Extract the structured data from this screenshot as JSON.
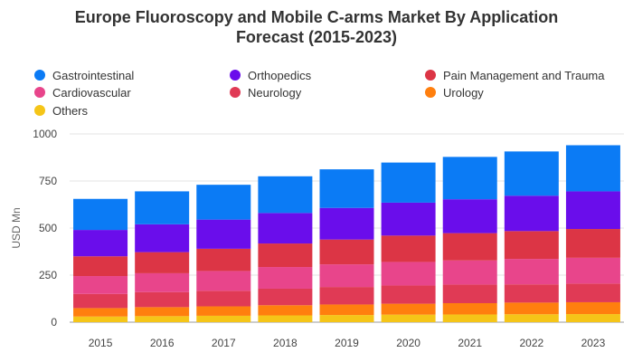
{
  "chart_data": {
    "type": "bar",
    "stacked": true,
    "title_lines": [
      "Europe Fluoroscopy and Mobile C-arms Market By Application",
      "Forecast (2015-2023)"
    ],
    "xlabel": "",
    "ylabel": "USD Mn",
    "ylim": [
      0,
      1000
    ],
    "yticks": [
      0,
      250,
      500,
      750,
      1000
    ],
    "grid": true,
    "legend_position": "top",
    "categories": [
      "2015",
      "2016",
      "2017",
      "2018",
      "2019",
      "2020",
      "2021",
      "2022",
      "2023"
    ],
    "series": [
      {
        "name": "Others",
        "color": "#F5C518",
        "values": [
          30,
          32,
          34,
          36,
          38,
          40,
          41,
          42,
          43
        ]
      },
      {
        "name": "Urology",
        "color": "#FF7F0E",
        "values": [
          45,
          48,
          50,
          54,
          56,
          58,
          60,
          62,
          63
        ]
      },
      {
        "name": "Neurology",
        "color": "#E03A55",
        "values": [
          75,
          80,
          83,
          88,
          93,
          97,
          99,
          97,
          99
        ]
      },
      {
        "name": "Cardiovascular",
        "color": "#E8458B",
        "values": [
          95,
          100,
          105,
          115,
          120,
          125,
          128,
          135,
          137
        ]
      },
      {
        "name": "Pain Management and Trauma",
        "color": "#DC3545",
        "values": [
          105,
          112,
          118,
          125,
          132,
          140,
          145,
          148,
          153
        ]
      },
      {
        "name": "Orthopedics",
        "color": "#6A0DEB",
        "values": [
          140,
          148,
          155,
          162,
          168,
          175,
          180,
          188,
          200
        ]
      },
      {
        "name": "Gastrointestinal",
        "color": "#0B7BF5",
        "values": [
          165,
          175,
          185,
          195,
          205,
          213,
          225,
          235,
          245
        ]
      }
    ]
  },
  "legend": [
    {
      "label": "Gastrointestinal",
      "color": "#0B7BF5"
    },
    {
      "label": "Orthopedics",
      "color": "#6A0DEB"
    },
    {
      "label": "Pain Management and Trauma",
      "color": "#DC3545"
    },
    {
      "label": "Cardiovascular",
      "color": "#E8458B"
    },
    {
      "label": "Neurology",
      "color": "#E03A55"
    },
    {
      "label": "Urology",
      "color": "#FF7F0E"
    },
    {
      "label": "Others",
      "color": "#F5C518"
    }
  ]
}
